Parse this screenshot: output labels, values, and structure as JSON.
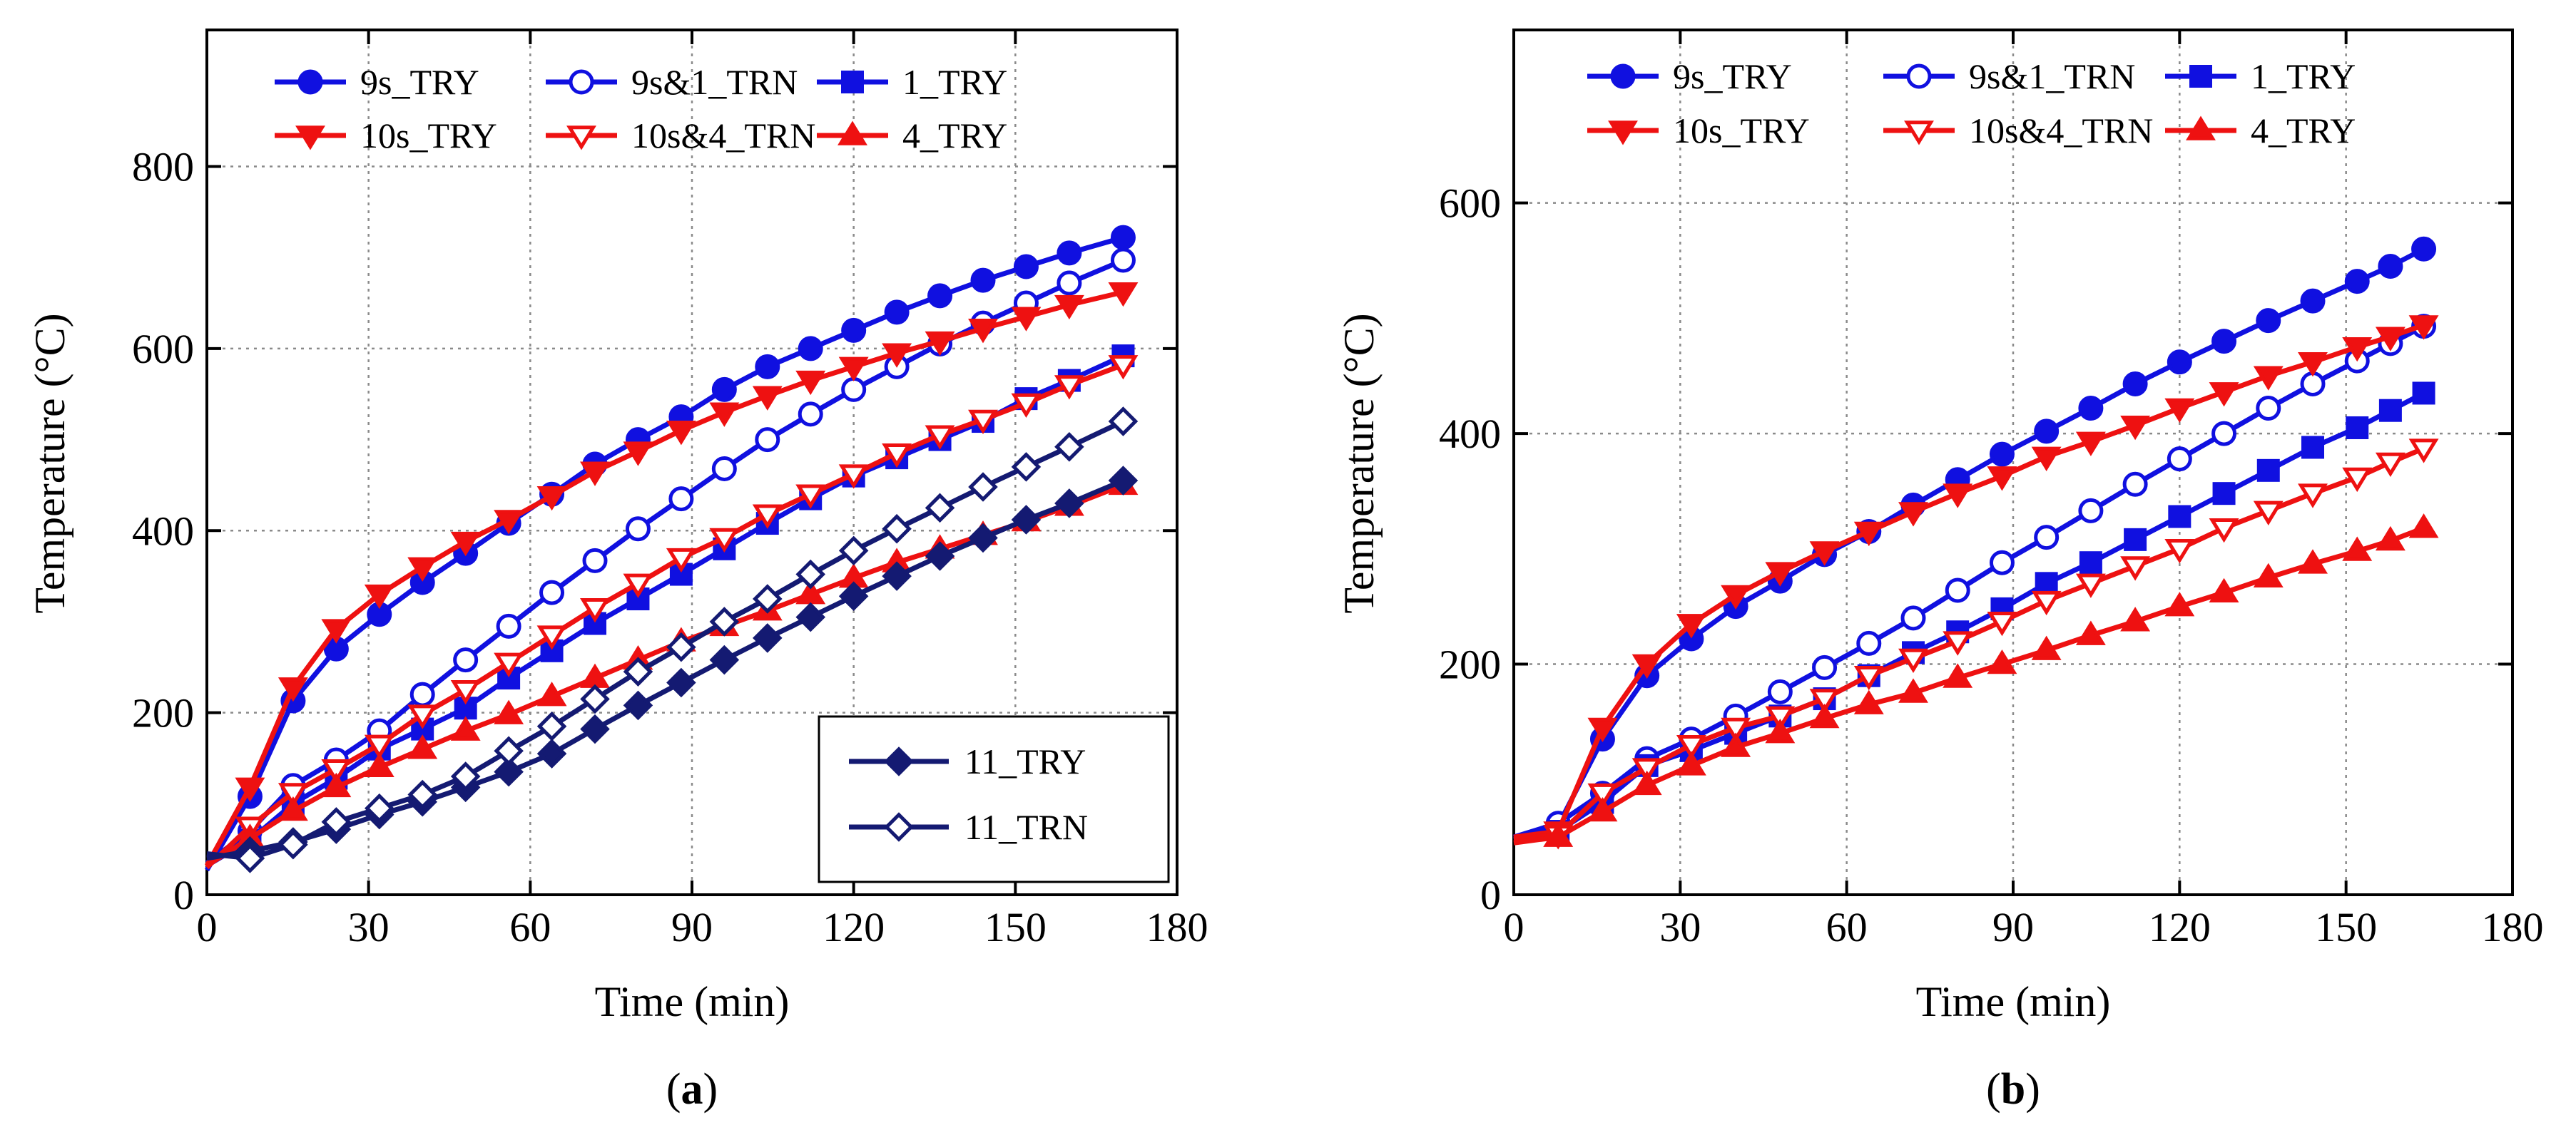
{
  "figure": {
    "panel_labels": [
      {
        "pre": "(",
        "letter": "a",
        "post": ")"
      },
      {
        "pre": "(",
        "letter": "b",
        "post": ")"
      }
    ]
  },
  "colors": {
    "blue": "#1010e0",
    "red": "#ee1111",
    "navy": "#141a72",
    "grid": "#8a8a8a",
    "axis": "#000000"
  },
  "chart_data": [
    {
      "type": "line",
      "panel": "a",
      "xlabel": "Time (min)",
      "ylabel": "Temperature (°C)",
      "xlim": [
        0,
        180
      ],
      "ylim": [
        0,
        950
      ],
      "xticks": [
        0,
        30,
        60,
        90,
        120,
        150,
        180
      ],
      "yticks": [
        0,
        200,
        400,
        600,
        800
      ],
      "grid": true,
      "legends": [
        {
          "placement": "top",
          "columns": 3,
          "entries": [
            "9s_TRY",
            "9s&1_TRN",
            "1_TRY",
            "10s_TRY",
            "10s&4_TRN",
            "4_TRY"
          ]
        },
        {
          "placement": "lower-right",
          "boxed": true,
          "entries": [
            "11_TRY",
            "11_TRN"
          ]
        }
      ],
      "series": [
        {
          "name": "9s_TRY",
          "color": "blue",
          "marker": "circle",
          "filled": true,
          "x": [
            0,
            8,
            16,
            24,
            32,
            40,
            48,
            56,
            64,
            72,
            80,
            88,
            96,
            104,
            112,
            120,
            128,
            136,
            144,
            152,
            160,
            170
          ],
          "y": [
            27,
            108,
            213,
            270,
            308,
            343,
            375,
            408,
            440,
            473,
            500,
            525,
            555,
            580,
            600,
            620,
            640,
            658,
            675,
            690,
            705,
            722
          ]
        },
        {
          "name": "9s&1_TRN",
          "color": "blue",
          "marker": "circle",
          "filled": false,
          "x": [
            0,
            8,
            16,
            24,
            32,
            40,
            48,
            56,
            64,
            72,
            80,
            88,
            96,
            104,
            112,
            120,
            128,
            136,
            144,
            152,
            160,
            170
          ],
          "y": [
            35,
            70,
            120,
            148,
            180,
            220,
            258,
            295,
            332,
            367,
            402,
            435,
            468,
            500,
            528,
            555,
            580,
            605,
            628,
            650,
            672,
            697
          ]
        },
        {
          "name": "1_TRY",
          "color": "blue",
          "marker": "square",
          "filled": true,
          "x": [
            0,
            8,
            16,
            24,
            32,
            40,
            48,
            56,
            64,
            72,
            80,
            88,
            96,
            104,
            112,
            120,
            128,
            136,
            144,
            152,
            160,
            170
          ],
          "y": [
            32,
            60,
            100,
            128,
            160,
            182,
            205,
            238,
            268,
            298,
            325,
            352,
            380,
            408,
            435,
            460,
            480,
            500,
            520,
            545,
            565,
            592
          ]
        },
        {
          "name": "10s_TRY",
          "color": "red",
          "marker": "triangle-down",
          "filled": true,
          "x": [
            0,
            8,
            16,
            24,
            32,
            40,
            48,
            56,
            64,
            72,
            80,
            88,
            96,
            104,
            112,
            120,
            128,
            136,
            144,
            152,
            160,
            170
          ],
          "y": [
            32,
            118,
            228,
            292,
            330,
            360,
            388,
            412,
            438,
            465,
            487,
            510,
            530,
            548,
            565,
            580,
            595,
            608,
            622,
            635,
            648,
            662
          ]
        },
        {
          "name": "10s&4_TRN",
          "color": "red",
          "marker": "triangle-down",
          "filled": false,
          "x": [
            0,
            8,
            16,
            24,
            32,
            40,
            48,
            56,
            64,
            72,
            80,
            88,
            96,
            104,
            112,
            120,
            128,
            136,
            144,
            152,
            160,
            170
          ],
          "y": [
            30,
            75,
            112,
            138,
            165,
            198,
            225,
            255,
            285,
            315,
            342,
            370,
            392,
            418,
            440,
            462,
            485,
            505,
            522,
            540,
            560,
            582
          ]
        },
        {
          "name": "4_TRY",
          "color": "red",
          "marker": "triangle-up",
          "filled": true,
          "x": [
            0,
            8,
            16,
            24,
            32,
            40,
            48,
            56,
            64,
            72,
            80,
            88,
            96,
            104,
            112,
            120,
            128,
            136,
            144,
            152,
            160,
            170
          ],
          "y": [
            32,
            62,
            92,
            118,
            140,
            160,
            180,
            198,
            218,
            238,
            258,
            278,
            295,
            312,
            330,
            348,
            365,
            380,
            395,
            410,
            427,
            450
          ]
        },
        {
          "name": "11_TRY",
          "color": "navy",
          "marker": "diamond",
          "filled": true,
          "x": [
            0,
            8,
            16,
            24,
            32,
            40,
            48,
            56,
            64,
            72,
            80,
            88,
            96,
            104,
            112,
            120,
            128,
            136,
            144,
            152,
            160,
            170
          ],
          "y": [
            40,
            48,
            58,
            72,
            88,
            102,
            118,
            135,
            155,
            182,
            208,
            233,
            258,
            282,
            305,
            328,
            350,
            372,
            392,
            412,
            430,
            455
          ]
        },
        {
          "name": "11_TRN",
          "color": "navy",
          "marker": "diamond",
          "filled": false,
          "x": [
            0,
            8,
            16,
            24,
            32,
            40,
            48,
            56,
            64,
            72,
            80,
            88,
            96,
            104,
            112,
            120,
            128,
            136,
            144,
            152,
            160,
            170
          ],
          "y": [
            45,
            40,
            55,
            80,
            95,
            110,
            130,
            158,
            185,
            215,
            245,
            272,
            300,
            325,
            352,
            378,
            402,
            425,
            448,
            470,
            492,
            520
          ]
        }
      ]
    },
    {
      "type": "line",
      "panel": "b",
      "xlabel": "Time (min)",
      "ylabel": "Temperature (°C)",
      "xlim": [
        0,
        180
      ],
      "ylim": [
        0,
        750
      ],
      "xticks": [
        0,
        30,
        60,
        90,
        120,
        150,
        180
      ],
      "yticks": [
        0,
        200,
        400,
        600
      ],
      "grid": true,
      "legends": [
        {
          "placement": "top",
          "columns": 3,
          "entries": [
            "9s_TRY",
            "9s&1_TRN",
            "1_TRY",
            "10s_TRY",
            "10s&4_TRN",
            "4_TRY"
          ]
        }
      ],
      "series": [
        {
          "name": "9s_TRY",
          "color": "blue",
          "marker": "circle",
          "filled": true,
          "x": [
            0,
            8,
            16,
            24,
            32,
            40,
            48,
            56,
            64,
            72,
            80,
            88,
            96,
            104,
            112,
            120,
            128,
            136,
            144,
            152,
            158,
            164
          ],
          "y": [
            50,
            60,
            135,
            190,
            222,
            250,
            272,
            295,
            315,
            338,
            360,
            382,
            402,
            422,
            443,
            462,
            480,
            498,
            515,
            532,
            545,
            560
          ]
        },
        {
          "name": "9s&1_TRN",
          "color": "blue",
          "marker": "circle",
          "filled": false,
          "x": [
            0,
            8,
            16,
            24,
            32,
            40,
            48,
            56,
            64,
            72,
            80,
            88,
            96,
            104,
            112,
            120,
            128,
            136,
            144,
            152,
            158,
            164
          ],
          "y": [
            50,
            62,
            88,
            118,
            135,
            155,
            176,
            197,
            218,
            240,
            264,
            288,
            310,
            333,
            356,
            378,
            400,
            422,
            443,
            463,
            478,
            493
          ]
        },
        {
          "name": "1_TRY",
          "color": "blue",
          "marker": "square",
          "filled": true,
          "x": [
            0,
            8,
            16,
            24,
            32,
            40,
            48,
            56,
            64,
            72,
            80,
            88,
            96,
            104,
            112,
            120,
            128,
            136,
            144,
            152,
            158,
            164
          ],
          "y": [
            48,
            55,
            80,
            112,
            125,
            140,
            155,
            170,
            190,
            210,
            228,
            248,
            270,
            288,
            308,
            328,
            348,
            368,
            388,
            405,
            420,
            435
          ]
        },
        {
          "name": "10s_TRY",
          "color": "red",
          "marker": "triangle-down",
          "filled": true,
          "x": [
            0,
            8,
            16,
            24,
            32,
            40,
            48,
            56,
            64,
            72,
            80,
            88,
            96,
            104,
            112,
            120,
            128,
            136,
            144,
            152,
            158,
            164
          ],
          "y": [
            50,
            55,
            145,
            200,
            235,
            260,
            280,
            298,
            315,
            332,
            348,
            363,
            380,
            393,
            407,
            422,
            436,
            450,
            462,
            475,
            484,
            494
          ]
        },
        {
          "name": "10s&4_TRN",
          "color": "red",
          "marker": "triangle-down",
          "filled": false,
          "x": [
            0,
            8,
            16,
            24,
            32,
            40,
            48,
            56,
            64,
            72,
            80,
            88,
            96,
            104,
            112,
            120,
            128,
            136,
            144,
            152,
            158,
            164
          ],
          "y": [
            48,
            52,
            88,
            110,
            130,
            145,
            155,
            170,
            190,
            205,
            220,
            237,
            255,
            270,
            285,
            300,
            318,
            333,
            348,
            362,
            375,
            387
          ]
        },
        {
          "name": "4_TRY",
          "color": "red",
          "marker": "triangle-up",
          "filled": true,
          "x": [
            0,
            8,
            16,
            24,
            32,
            40,
            48,
            56,
            64,
            72,
            80,
            88,
            96,
            104,
            112,
            120,
            128,
            136,
            144,
            152,
            158,
            164
          ],
          "y": [
            45,
            50,
            72,
            95,
            112,
            128,
            140,
            153,
            165,
            175,
            188,
            200,
            212,
            225,
            237,
            250,
            262,
            275,
            287,
            298,
            307,
            318
          ]
        }
      ]
    }
  ]
}
